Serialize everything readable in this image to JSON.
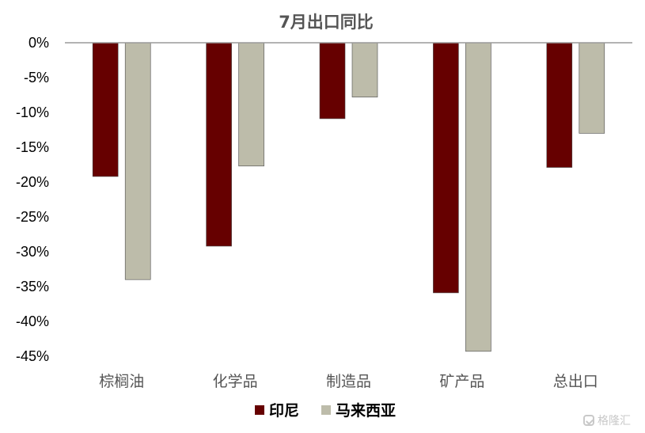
{
  "chart_data": {
    "type": "bar",
    "title": "7月出口同比",
    "categories": [
      "棕榈油",
      "化学品",
      "制造品",
      "矿产品",
      "总出口"
    ],
    "series": [
      {
        "name": "印尼",
        "color": "#660000",
        "values": [
          -19.2,
          -29.2,
          -10.9,
          -35.9,
          -17.9
        ]
      },
      {
        "name": "马来西亚",
        "color": "#bdbcaa",
        "values": [
          -34.0,
          -17.7,
          -7.8,
          -44.3,
          -13.0
        ]
      }
    ],
    "ylim": [
      -45,
      0
    ],
    "yticks": [
      "0%",
      "-5%",
      "-10%",
      "-15%",
      "-20%",
      "-25%",
      "-30%",
      "-35%",
      "-40%",
      "-45%"
    ],
    "xlabel": "",
    "ylabel": "",
    "grid": false,
    "legend": "bottom"
  },
  "watermark": "格隆汇"
}
